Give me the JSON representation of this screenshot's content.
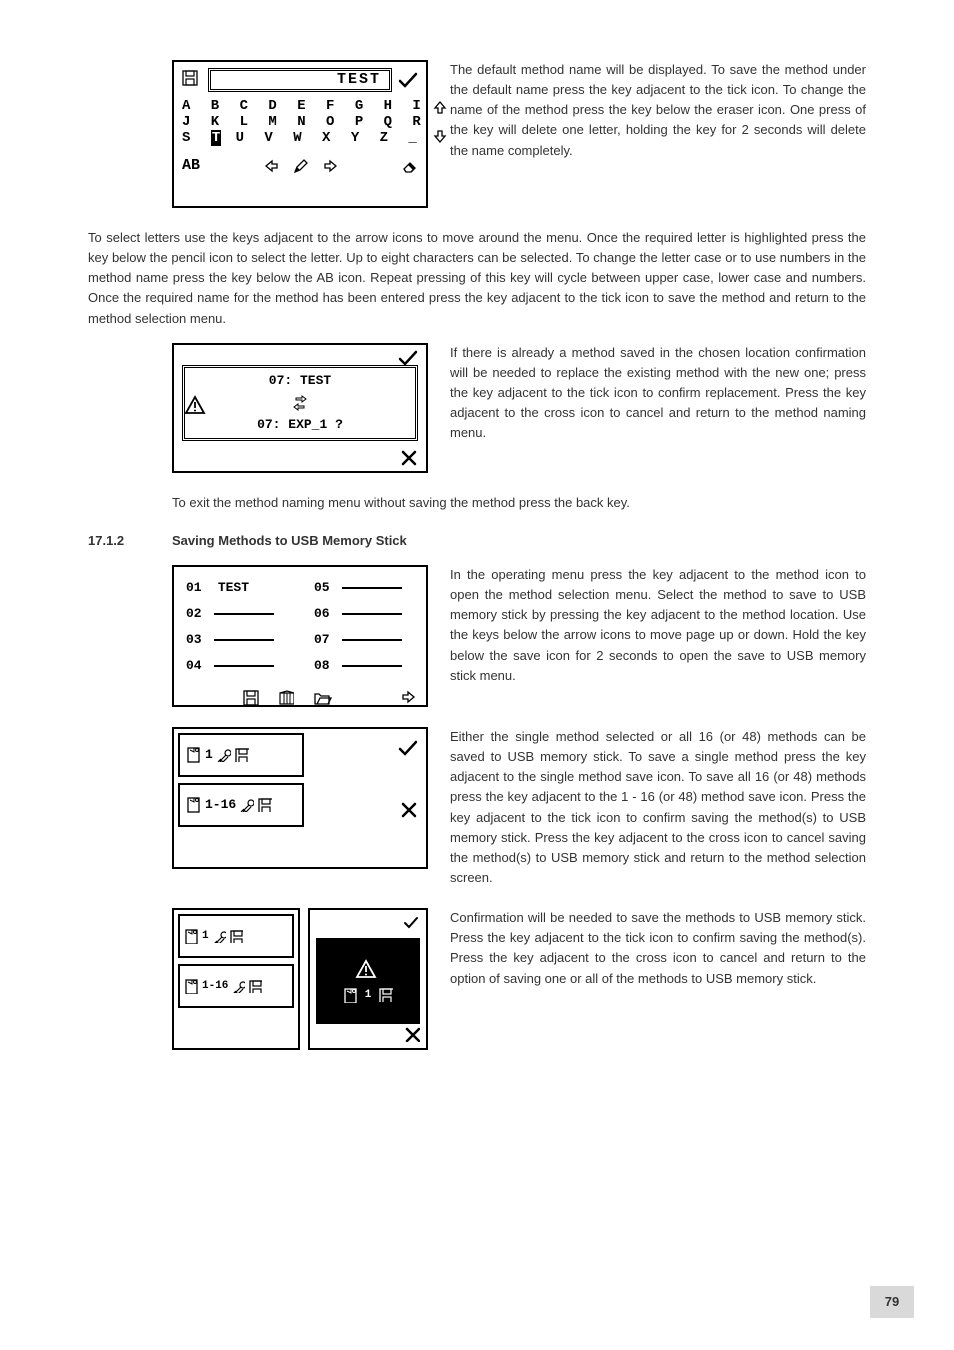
{
  "page_number": "79",
  "section": {
    "number": "17.1.2",
    "title": "Saving Methods to USB Memory Stick"
  },
  "p1": "The default method name will be displayed. To save the method under the default name press the key adjacent to the tick icon. To change the name of the method press the key below the eraser icon. One press of the key will delete one letter, holding the key for 2 seconds will delete the name completely.",
  "p2": "To select letters use the keys adjacent to the arrow icons to move around the menu. Once the required letter is highlighted press the key below the pencil icon to select the letter. Up to eight characters can be selected. To change the letter case or to use numbers in the method name press the key below the AB icon. Repeat pressing of this key will cycle between upper case, lower case and numbers. Once the required name for the method has been entered press the key adjacent to the tick icon to save the method and return to the method selection menu.",
  "p3": "If there is already a method saved in the chosen location confirmation will be needed to replace the existing method with the new one; press the key adjacent to the tick icon to confirm replacement. Press the key adjacent to the cross icon to cancel and return to the method naming menu.",
  "p4": "To exit the method naming menu without saving the method press the back key.",
  "p5": "In the operating menu press the key adjacent to the method icon to open the method selection menu. Select the method to save to USB memory stick by pressing the key adjacent to the method location. Use the keys below the arrow icons to move page up or down. Hold the key below the save icon for 2 seconds to open the save to USB memory stick menu.",
  "p6": "Either the single method selected or all 16 (or 48) methods can be saved to USB memory stick. To save a single method press the key adjacent to the single method save icon. To save all 16 (or 48) methods press the key adjacent to the 1 - 16 (or 48) method save icon. Press the key adjacent to the tick icon to confirm saving the method(s) to USB memory stick. Press the key adjacent to the cross icon to cancel saving the method(s) to USB memory stick and return to the method selection screen.",
  "p7": "Confirmation will be needed to save the methods to USB memory stick. Press the key adjacent to the tick icon to confirm saving the method(s). Press the key adjacent to the cross icon to cancel and return to the option of saving one or all of the methods to USB memory stick.",
  "fig1": {
    "title": "TEST",
    "rows": [
      "A B C D E F G H I",
      "J K L M N O P Q R",
      "S T U V W X Y Z _"
    ],
    "highlight_row": 2,
    "highlight_col": 1,
    "ab_label": "AB"
  },
  "fig2": {
    "line1": "07: TEST",
    "line2": "07: EXP_1 ?"
  },
  "fig3": {
    "slots": [
      {
        "n": "01",
        "name": "TEST"
      },
      {
        "n": "05",
        "name": ""
      },
      {
        "n": "02",
        "name": ""
      },
      {
        "n": "06",
        "name": ""
      },
      {
        "n": "03",
        "name": ""
      },
      {
        "n": "07",
        "name": ""
      },
      {
        "n": "04",
        "name": ""
      },
      {
        "n": "08",
        "name": ""
      }
    ]
  },
  "fig4": {
    "opt1": "1",
    "opt2": "1-16"
  },
  "fig5": {
    "opt1": "1",
    "opt2": "1-16",
    "black_count": "1"
  },
  "colors": {
    "text": "#333333",
    "lcd_border": "#000000",
    "page_badge": "#d9d9d9"
  }
}
